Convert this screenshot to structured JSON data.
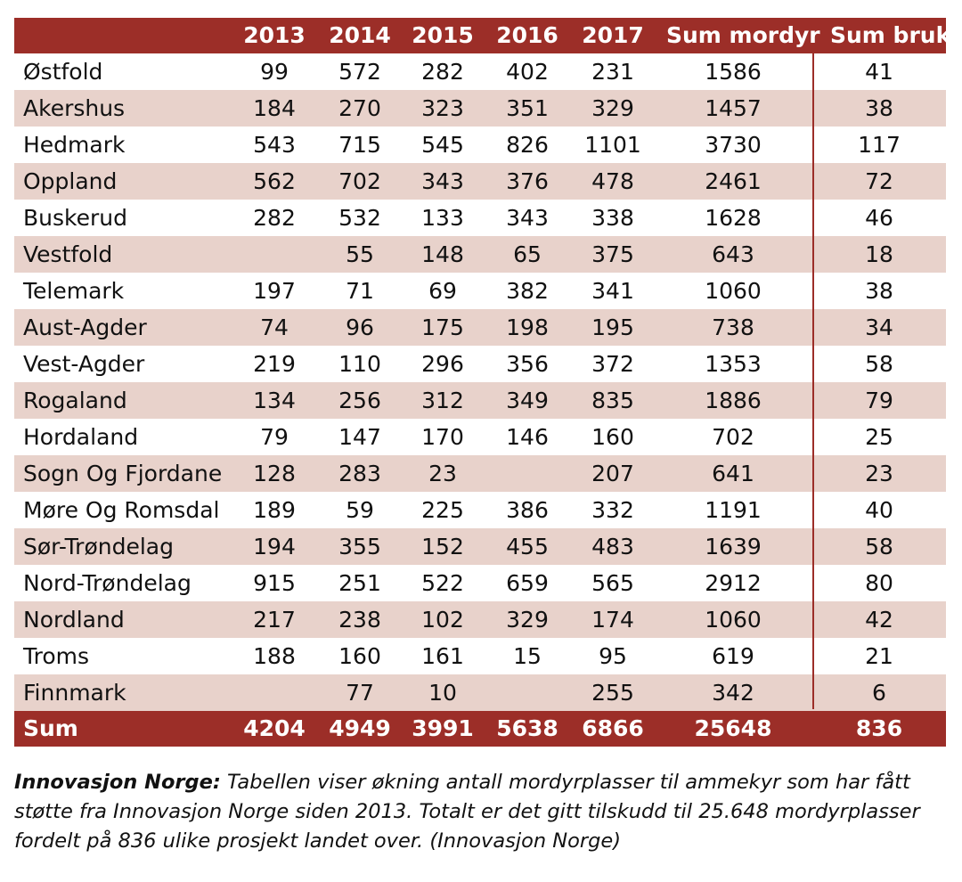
{
  "table": {
    "headers": [
      "",
      "2013",
      "2014",
      "2015",
      "2016",
      "2017",
      "Sum mordyr",
      "Sum bruk"
    ],
    "rows": [
      {
        "name": "Østfold",
        "values": [
          "99",
          "572",
          "282",
          "402",
          "231",
          "1586",
          "41"
        ]
      },
      {
        "name": "Akershus",
        "values": [
          "184",
          "270",
          "323",
          "351",
          "329",
          "1457",
          "38"
        ]
      },
      {
        "name": "Hedmark",
        "values": [
          "543",
          "715",
          "545",
          "826",
          "1101",
          "3730",
          "117"
        ]
      },
      {
        "name": "Oppland",
        "values": [
          "562",
          "702",
          "343",
          "376",
          "478",
          "2461",
          "72"
        ]
      },
      {
        "name": "Buskerud",
        "values": [
          "282",
          "532",
          "133",
          "343",
          "338",
          "1628",
          "46"
        ]
      },
      {
        "name": "Vestfold",
        "values": [
          "",
          "55",
          "148",
          "65",
          "375",
          "643",
          "18"
        ]
      },
      {
        "name": "Telemark",
        "values": [
          "197",
          "71",
          "69",
          "382",
          "341",
          "1060",
          "38"
        ]
      },
      {
        "name": "Aust-Agder",
        "values": [
          "74",
          "96",
          "175",
          "198",
          "195",
          "738",
          "34"
        ]
      },
      {
        "name": "Vest-Agder",
        "values": [
          "219",
          "110",
          "296",
          "356",
          "372",
          "1353",
          "58"
        ]
      },
      {
        "name": "Rogaland",
        "values": [
          "134",
          "256",
          "312",
          "349",
          "835",
          "1886",
          "79"
        ]
      },
      {
        "name": "Hordaland",
        "values": [
          "79",
          "147",
          "170",
          "146",
          "160",
          "702",
          "25"
        ]
      },
      {
        "name": "Sogn Og Fjordane",
        "values": [
          "128",
          "283",
          "23",
          "",
          "207",
          "641",
          "23"
        ]
      },
      {
        "name": "Møre Og Romsdal",
        "values": [
          "189",
          "59",
          "225",
          "386",
          "332",
          "1191",
          "40"
        ]
      },
      {
        "name": "Sør-Trøndelag",
        "values": [
          "194",
          "355",
          "152",
          "455",
          "483",
          "1639",
          "58"
        ]
      },
      {
        "name": "Nord-Trøndelag",
        "values": [
          "915",
          "251",
          "522",
          "659",
          "565",
          "2912",
          "80"
        ]
      },
      {
        "name": "Nordland",
        "values": [
          "217",
          "238",
          "102",
          "329",
          "174",
          "1060",
          "42"
        ]
      },
      {
        "name": "Troms",
        "values": [
          "188",
          "160",
          "161",
          "15",
          "95",
          "619",
          "21"
        ]
      },
      {
        "name": "Finnmark",
        "values": [
          "",
          "77",
          "10",
          "",
          "255",
          "342",
          "6"
        ]
      }
    ],
    "sum": {
      "name": "Sum",
      "values": [
        "4204",
        "4949",
        "3991",
        "5638",
        "6866",
        "25648",
        "836"
      ]
    }
  },
  "colors": {
    "accent": "#9c2e28",
    "stripe": "#e8d2cb"
  },
  "caption": {
    "lead": "Innovasjon Norge:",
    "text": " Tabellen viser økning antall mordyrplasser til ammekyr som har fått støtte fra Innovasjon Norge siden 2013. Totalt er det gitt tilskudd til 25.648 mordyrplasser fordelt på 836 ulike prosjekt landet over. (Innovasjon Norge)"
  }
}
